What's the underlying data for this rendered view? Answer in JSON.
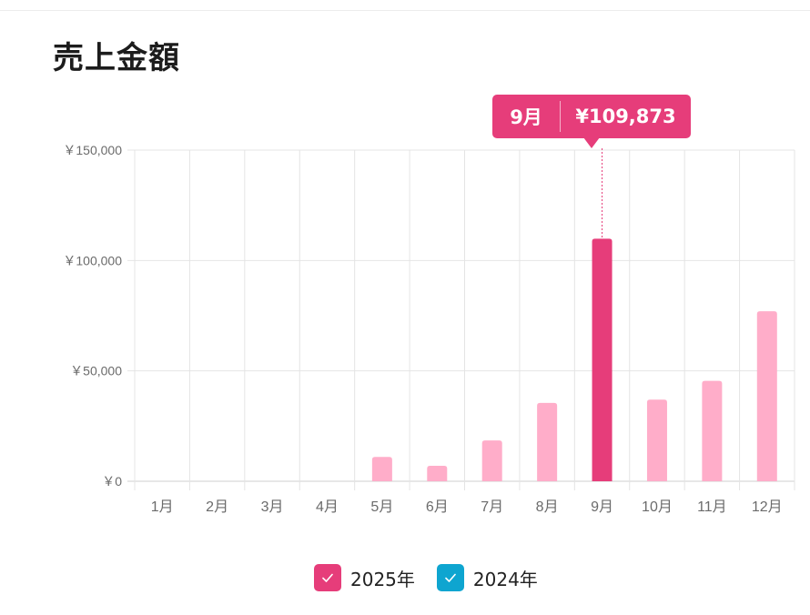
{
  "page": {
    "title": "売上金額"
  },
  "tooltip": {
    "month": "9月",
    "value": "¥109,873"
  },
  "legend": [
    {
      "label": "2025年",
      "color": "#e63d7a",
      "checked": true
    },
    {
      "label": "2024年",
      "color": "#0ea5d0",
      "checked": true
    }
  ],
  "chart_data": {
    "type": "bar",
    "categories": [
      "1月",
      "2月",
      "3月",
      "4月",
      "5月",
      "6月",
      "7月",
      "8月",
      "9月",
      "10月",
      "11月",
      "12月"
    ],
    "series": [
      {
        "name": "2025年",
        "values": [
          0,
          0,
          0,
          0,
          11000,
          7000,
          18500,
          35500,
          109873,
          37000,
          45500,
          77000
        ],
        "color": "#ffadc9",
        "highlight_color": "#e63d7a",
        "highlight_index": 8
      },
      {
        "name": "2024年",
        "values": [
          0,
          0,
          0,
          0,
          0,
          0,
          0,
          0,
          0,
          0,
          0,
          0
        ],
        "color": "#0ea5d0"
      }
    ],
    "ylim": [
      0,
      150000
    ],
    "yticks": [
      0,
      50000,
      100000,
      150000
    ],
    "ytick_labels": [
      "￥0",
      "￥50,000",
      "￥100,000",
      "￥150,000"
    ],
    "grid": true
  }
}
